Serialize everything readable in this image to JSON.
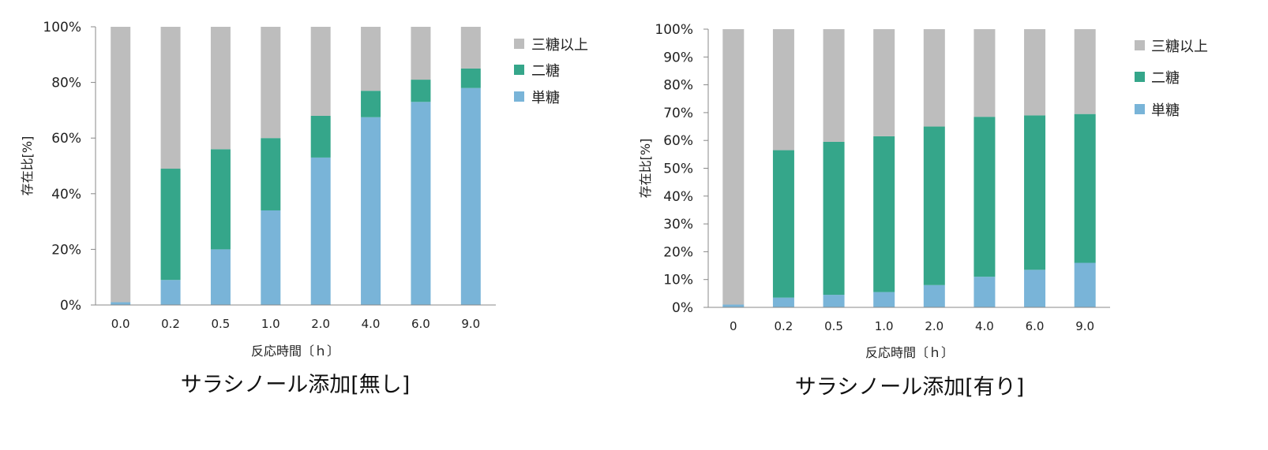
{
  "colors": {
    "trisaccharide": "#bdbdbd",
    "disaccharide": "#35a68a",
    "monosaccharide": "#79b4d8"
  },
  "chart_data": [
    {
      "type": "bar",
      "stacked": true,
      "caption": "サラシノール添加[無し]",
      "xlabel": "反応時間〔ｈ〕",
      "ylabel": "存在比[%]",
      "ylim": [
        0,
        100
      ],
      "yticks": [
        "0%",
        "20%",
        "40%",
        "60%",
        "80%",
        "100%"
      ],
      "categories": [
        "0.0",
        "0.2",
        "0.5",
        "1.0",
        "2.0",
        "4.0",
        "6.0",
        "9.0"
      ],
      "series": [
        {
          "name": "単糖",
          "values": [
            1,
            9,
            20,
            34,
            53,
            67.5,
            73,
            78
          ]
        },
        {
          "name": "二糖",
          "values": [
            0,
            40,
            36,
            26,
            15,
            9.5,
            8,
            7
          ]
        },
        {
          "name": "三糖以上",
          "values": [
            99,
            51,
            44,
            40,
            32,
            23,
            19,
            15
          ]
        }
      ],
      "legend": [
        "三糖以上",
        "二糖",
        "単糖"
      ],
      "legend_position": "right"
    },
    {
      "type": "bar",
      "stacked": true,
      "caption": "サラシノール添加[有り]",
      "xlabel": "反応時間〔ｈ〕",
      "ylabel": "存在比[%]",
      "ylim": [
        0,
        100
      ],
      "yticks": [
        "0%",
        "10%",
        "20%",
        "30%",
        "40%",
        "50%",
        "60%",
        "70%",
        "80%",
        "90%",
        "100%"
      ],
      "categories": [
        "0",
        "0.2",
        "0.5",
        "1.0",
        "2.0",
        "4.0",
        "6.0",
        "9.0"
      ],
      "series": [
        {
          "name": "単糖",
          "values": [
            1,
            3.5,
            4.5,
            5.5,
            8,
            11,
            13.5,
            16
          ]
        },
        {
          "name": "二糖",
          "values": [
            0,
            53,
            55,
            56,
            57,
            57.5,
            55.5,
            53.5
          ]
        },
        {
          "name": "三糖以上",
          "values": [
            99,
            43.5,
            40.5,
            38.5,
            35,
            31.5,
            31,
            30.5
          ]
        }
      ],
      "legend": [
        "三糖以上",
        "二糖",
        "単糖"
      ],
      "legend_position": "right"
    }
  ]
}
